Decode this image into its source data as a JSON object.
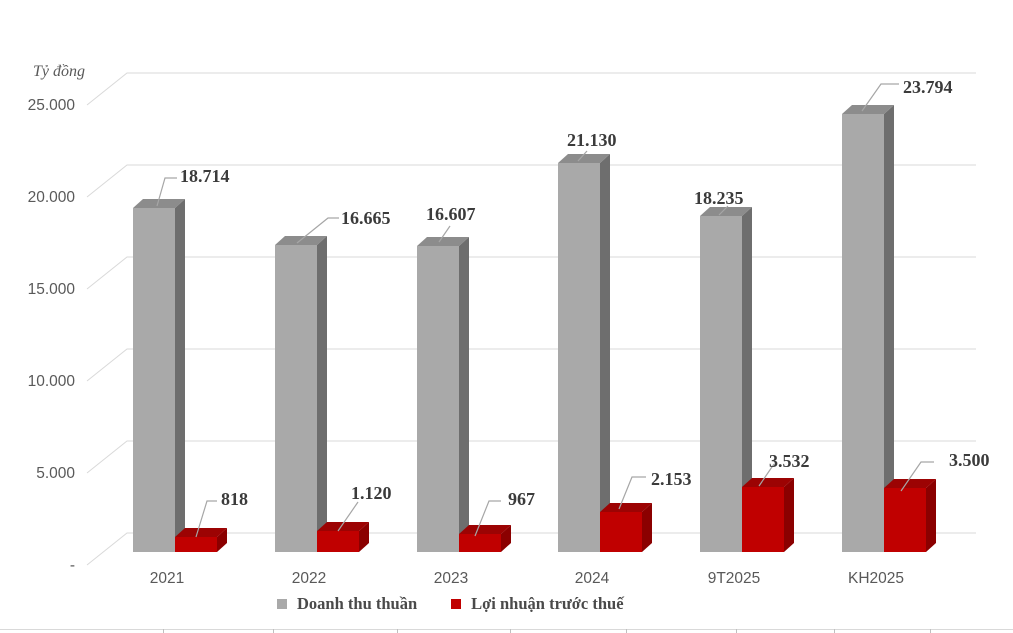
{
  "chart_data": {
    "type": "bar",
    "style": "3d-clustered-column",
    "unit_label": "Tỷ đồng",
    "categories": [
      "2021",
      "2022",
      "2023",
      "2024",
      "9T2025",
      "KH2025"
    ],
    "series": [
      {
        "name": "Doanh thu thuần",
        "color": "#A9A9A9",
        "values": [
          18714,
          16665,
          16607,
          21130,
          18235,
          23794
        ],
        "labels": [
          "18.714",
          "16.665",
          "16.607",
          "21.130",
          "18.235",
          "23.794"
        ]
      },
      {
        "name": "Lợi nhuận trước thuế",
        "color": "#C00000",
        "values": [
          818,
          1120,
          967,
          2153,
          3532,
          3500
        ],
        "labels": [
          "818",
          "1.120",
          "967",
          "2.153",
          "3.532",
          "3.500"
        ]
      }
    ],
    "y_axis": {
      "ticks": [
        "25.000",
        "20.000",
        "15.000",
        "10.000",
        "5.000",
        "-"
      ],
      "tick_values": [
        25000,
        20000,
        15000,
        10000,
        5000,
        0
      ],
      "ylim": [
        0,
        25000
      ]
    },
    "grid": true,
    "legend_position": "bottom"
  },
  "colors": {
    "background": "#FFFFFF",
    "grid": "#D9D9D9",
    "leader_line": "#A6A6A6",
    "axis_text": "#595959",
    "data_label_text": "#3B3B3B",
    "legend_text": "#4A4A4A",
    "revenue_front": "#A9A9A9",
    "revenue_top": "#8C8C8C",
    "revenue_side": "#6E6E6E",
    "profit_front": "#C00000",
    "profit_top": "#9C0303",
    "profit_side": "#8B0000"
  }
}
